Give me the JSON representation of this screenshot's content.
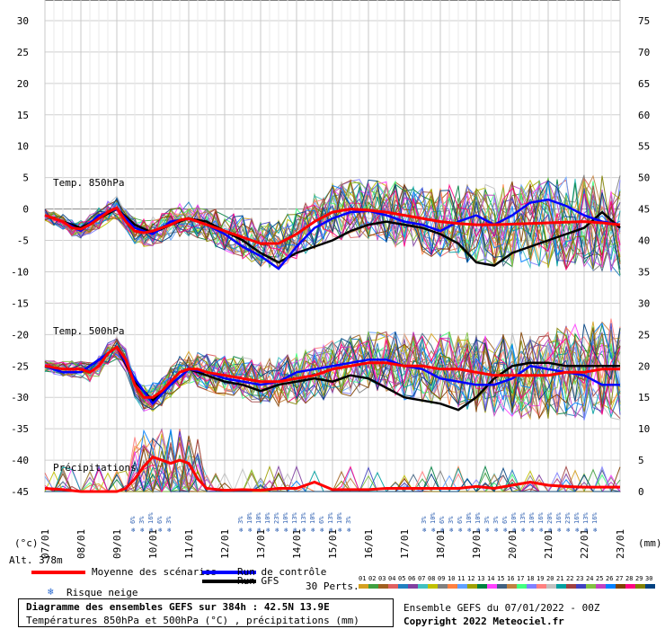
{
  "chart_data": {
    "type": "line",
    "left_axis": {
      "unit": "(°c)",
      "min": -45,
      "max": 30,
      "ticks": [
        30,
        25,
        20,
        15,
        10,
        5,
        0,
        -5,
        -10,
        -15,
        -20,
        -25,
        -30,
        -35,
        -40,
        -45
      ]
    },
    "right_axis": {
      "unit": "(mm)",
      "min": 0,
      "max": 75,
      "ticks": [
        75,
        70,
        65,
        60,
        55,
        50,
        45,
        40,
        35,
        30,
        25,
        20,
        15,
        10,
        5,
        0
      ]
    },
    "x_dates": [
      "07/01",
      "08/01",
      "09/01",
      "10/01",
      "11/01",
      "12/01",
      "13/01",
      "14/01",
      "15/01",
      "16/01",
      "17/01",
      "18/01",
      "19/01",
      "20/01",
      "21/01",
      "22/01",
      "23/01"
    ],
    "altitude_label": "Alt. 378m",
    "panel_labels": {
      "t850": "Temp. 850hPa",
      "t500": "Temp. 500hPa",
      "precip": "Précipitations"
    },
    "grid": true,
    "series": [
      {
        "name": "Moyenne des scénarios",
        "group": "t850",
        "color": "#ff0000",
        "x": [
          0,
          0.25,
          0.5,
          0.75,
          1,
          1.25,
          1.5,
          1.75,
          2,
          2.25,
          2.5,
          2.75,
          3,
          3.25,
          3.5,
          3.75,
          4,
          4.25,
          4.5,
          4.75,
          5,
          5.5,
          6,
          6.5,
          7,
          7.5,
          8,
          8.5,
          9,
          9.5,
          10,
          10.5,
          11,
          11.5,
          12,
          12.5,
          13,
          13.5,
          14,
          14.5,
          15,
          15.5,
          16
        ],
        "y": [
          -1,
          -1.5,
          -2,
          -3,
          -3.2,
          -2.5,
          -1.5,
          -0.5,
          0.2,
          -2,
          -3.5,
          -3.8,
          -3.5,
          -3,
          -2.5,
          -1.8,
          -1.5,
          -2,
          -2.5,
          -3,
          -3.5,
          -4.5,
          -5.5,
          -5.5,
          -4,
          -2,
          -0.5,
          0,
          -0.2,
          -0.5,
          -1,
          -1.5,
          -2,
          -2.3,
          -2.5,
          -2.5,
          -2.4,
          -2.3,
          -2.2,
          -2.1,
          -2,
          -2.2,
          -2.5
        ]
      },
      {
        "name": "Run de contrôle",
        "group": "t850",
        "color": "#0000ff",
        "x": [
          0,
          0.5,
          1,
          1.5,
          2,
          2.5,
          3,
          3.5,
          4,
          4.5,
          5,
          5.5,
          6,
          6.5,
          7,
          7.5,
          8,
          8.5,
          9,
          9.5,
          10,
          10.5,
          11,
          11.5,
          12,
          12.5,
          13,
          13.5,
          14,
          14.5,
          15,
          15.5,
          16
        ],
        "y": [
          -1,
          -2,
          -3.5,
          -1,
          0,
          -3,
          -4,
          -2,
          -1.5,
          -2.5,
          -4,
          -6,
          -7.5,
          -9.5,
          -6,
          -3,
          -1.5,
          -0.5,
          -0.3,
          -1,
          -2,
          -2.5,
          -3.5,
          -2,
          -1,
          -2.5,
          -1,
          1,
          1.5,
          0.5,
          -1,
          -2,
          -2.5
        ]
      },
      {
        "name": "Run GFS",
        "group": "t850",
        "color": "#000000",
        "x": [
          0,
          0.5,
          1,
          1.5,
          2,
          2.5,
          3,
          3.5,
          4,
          4.5,
          5,
          5.5,
          6,
          6.5,
          7,
          7.5,
          8,
          8.5,
          9,
          9.5,
          10,
          10.5,
          11,
          11.5,
          12,
          12.5,
          13,
          13.5,
          14,
          14.5,
          15,
          15.5,
          16
        ],
        "y": [
          -1,
          -2,
          -3,
          -1.5,
          0,
          -2.5,
          -3.8,
          -2.5,
          -1.5,
          -2,
          -3.5,
          -5,
          -7,
          -8.5,
          -7,
          -6,
          -5,
          -3.5,
          -2.5,
          -2,
          -2.5,
          -3,
          -4,
          -5.5,
          -8.5,
          -9,
          -7,
          -6,
          -5,
          -4,
          -3,
          -0.5,
          -3
        ]
      },
      {
        "name": "Moyenne des scénarios",
        "group": "t500",
        "color": "#ff0000",
        "x": [
          0,
          0.5,
          1,
          1.25,
          1.5,
          1.75,
          2,
          2.25,
          2.5,
          2.75,
          3,
          3.25,
          3.5,
          3.75,
          4,
          4.25,
          4.5,
          5,
          5.5,
          6,
          6.5,
          7,
          7.5,
          8,
          8.5,
          9,
          9.5,
          10,
          10.5,
          11,
          11.5,
          12,
          12.5,
          13,
          13.5,
          14,
          14.5,
          15,
          15.5,
          16
        ],
        "y": [
          -25,
          -25.5,
          -25.5,
          -26,
          -25,
          -23,
          -22,
          -24,
          -28,
          -30,
          -30,
          -29,
          -27.5,
          -26,
          -25.5,
          -25.5,
          -26,
          -26.5,
          -27,
          -27.5,
          -27.5,
          -27,
          -26.5,
          -25.5,
          -25,
          -24.5,
          -24.5,
          -25,
          -25,
          -25.5,
          -25.5,
          -26,
          -26.5,
          -26.5,
          -26.5,
          -26.5,
          -26,
          -26,
          -25.5,
          -25.5
        ]
      },
      {
        "name": "Run de contrôle",
        "group": "t500",
        "color": "#0000ff",
        "x": [
          0,
          0.5,
          1,
          1.5,
          2,
          2.5,
          3,
          3.5,
          4,
          4.5,
          5,
          5.5,
          6,
          6.5,
          7,
          7.5,
          8,
          8.5,
          9,
          9.5,
          10,
          10.5,
          11,
          11.5,
          12,
          12.5,
          13,
          13.5,
          14,
          14.5,
          15,
          15.5,
          16
        ],
        "y": [
          -25,
          -26,
          -26,
          -24,
          -22,
          -27,
          -31,
          -28,
          -25.5,
          -26,
          -27,
          -27.5,
          -28,
          -27.5,
          -26,
          -25.5,
          -25,
          -24.5,
          -24,
          -24,
          -25,
          -25.5,
          -27,
          -27.5,
          -28,
          -28,
          -27,
          -25,
          -25.5,
          -26,
          -26.5,
          -28,
          -28
        ]
      },
      {
        "name": "Run GFS",
        "group": "t500",
        "color": "#000000",
        "x": [
          0,
          0.5,
          1,
          1.5,
          2,
          2.5,
          3,
          3.5,
          4,
          4.5,
          5,
          5.5,
          6,
          6.5,
          7,
          7.5,
          8,
          8.5,
          9,
          9.5,
          10,
          10.5,
          11,
          11.5,
          12,
          12.5,
          13,
          13.5,
          14,
          14.5,
          15,
          15.5,
          16
        ],
        "y": [
          -25,
          -26,
          -26,
          -24,
          -22,
          -27.5,
          -30.5,
          -28,
          -25.5,
          -26.5,
          -27.5,
          -28,
          -29,
          -28,
          -27.5,
          -27,
          -27.5,
          -26.5,
          -27,
          -28.5,
          -30,
          -30.5,
          -31,
          -32,
          -30,
          -27,
          -25,
          -24.5,
          -24.5,
          -25,
          -25,
          -25,
          -25
        ]
      },
      {
        "name": "Moyenne des scénarios",
        "group": "precip",
        "color": "#ff0000",
        "x": [
          0,
          0.5,
          1,
          1.5,
          2,
          2.25,
          2.5,
          2.75,
          3,
          3.25,
          3.5,
          3.75,
          4,
          4.25,
          4.5,
          5,
          5.5,
          6,
          6.5,
          7,
          7.5,
          8,
          8.5,
          9,
          9.5,
          10,
          10.5,
          11,
          11.5,
          12,
          12.5,
          13,
          13.5,
          14,
          14.5,
          15,
          15.5,
          16
        ],
        "y": [
          0.5,
          0.3,
          0,
          0,
          0,
          0.5,
          2,
          4,
          5.5,
          5,
          4.5,
          5,
          4.5,
          2,
          0.5,
          0.2,
          0.3,
          0.2,
          0.5,
          0.5,
          1.5,
          0.3,
          0.3,
          0.3,
          0.5,
          0.5,
          0.5,
          0.5,
          0.5,
          0.8,
          0.5,
          1,
          1.5,
          1,
          0.8,
          0.7,
          0.7,
          0.7
        ]
      }
    ],
    "snow_risk_groups": [
      {
        "x_start": 2.4,
        "labels": [
          "6%",
          "3%",
          "16%",
          "6%",
          "3%"
        ]
      },
      {
        "x_start": 5.4,
        "labels": [
          "3%",
          "10%",
          "10%",
          "10%",
          "23%",
          "10%",
          "13%",
          "13%",
          "10%",
          "6%",
          "13%",
          "10%",
          "3%"
        ]
      },
      {
        "x_start": 10.5,
        "labels": [
          "3%",
          "10%",
          "6%",
          "3%",
          "6%",
          "10%",
          "10%",
          "3%",
          "3%",
          "6%",
          "10%",
          "13%",
          "10%",
          "16%",
          "20%",
          "16%",
          "23%",
          "16%",
          "13%",
          "16%"
        ]
      }
    ]
  },
  "legend": {
    "mean": "Moyenne des scénarios",
    "control": "Run de contrôle",
    "gfs": "Run GFS",
    "snow_risk": "Risque neige",
    "perts": "30 Perts.",
    "pert_numbers": [
      "01",
      "02",
      "03",
      "04",
      "05",
      "06",
      "07",
      "08",
      "09",
      "10",
      "11",
      "12",
      "13",
      "14",
      "15",
      "16",
      "17",
      "18",
      "19",
      "20",
      "21",
      "22",
      "23",
      "24",
      "25",
      "26",
      "27",
      "28",
      "29",
      "30"
    ],
    "pert_colors": [
      "#d4a020",
      "#40a040",
      "#a06020",
      "#e06060",
      "#2080c0",
      "#8040a0",
      "#40c0c0",
      "#c0c000",
      "#808080",
      "#ff8040",
      "#60a0ff",
      "#a0a000",
      "#008040",
      "#ff40ff",
      "#406080",
      "#c08040",
      "#40ff80",
      "#8080ff",
      "#ff8080",
      "#c0c0c0",
      "#00a0a0",
      "#a04040",
      "#4040c0",
      "#80c040",
      "#c040c0",
      "#0080ff",
      "#804000",
      "#ff0080",
      "#808000",
      "#004080"
    ]
  },
  "title": {
    "line1": "Diagramme des ensembles GEFS sur 384h : 42.5N 13.9E",
    "line2": "Températures 850hPa et 500hPa (°C) , précipitations (mm)"
  },
  "info": {
    "ensemble": "Ensemble GEFS du 07/01/2022 - 00Z",
    "copyright": "Copyright 2022 Meteociel.fr"
  }
}
